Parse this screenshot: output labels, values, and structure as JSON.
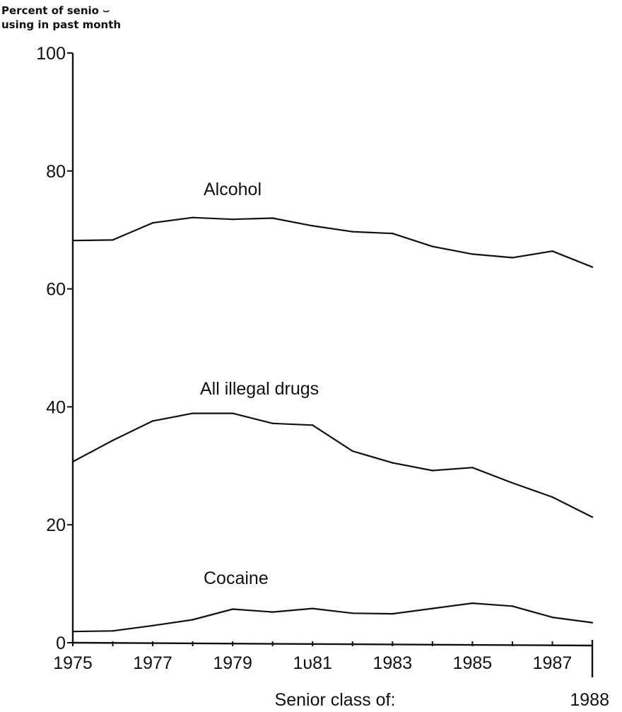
{
  "chart_data": {
    "type": "line",
    "ylabel_lines": [
      "Percent of senio ⌣",
      "using in past month"
    ],
    "xlabel": "Senior class of:",
    "x": [
      1975,
      1976,
      1977,
      1978,
      1979,
      1980,
      1981,
      1982,
      1983,
      1984,
      1985,
      1986,
      1987,
      1988
    ],
    "xlim": [
      1975,
      1988
    ],
    "ylim": [
      0,
      100
    ],
    "y_ticks": [
      0,
      20,
      40,
      60,
      80,
      100
    ],
    "y_tick_labels": [
      "0",
      "20",
      "40",
      "60",
      "80",
      "100"
    ],
    "x_tick_labels": [
      {
        "x": 1975,
        "label": "1975"
      },
      {
        "x": 1977,
        "label": "1977"
      },
      {
        "x": 1979,
        "label": "1979"
      },
      {
        "x": 1981,
        "label": "1υ81"
      },
      {
        "x": 1983,
        "label": "1983"
      },
      {
        "x": 1985,
        "label": "1985"
      },
      {
        "x": 1987,
        "label": "1987"
      }
    ],
    "end_year_label": "1988",
    "series": [
      {
        "name": "Alcohol",
        "values": [
          68.2,
          68.3,
          71.2,
          72.1,
          71.8,
          72.0,
          70.7,
          69.7,
          69.4,
          67.2,
          65.9,
          65.3,
          66.4,
          63.7
        ]
      },
      {
        "name": "All illegal drugs",
        "values": [
          30.7,
          34.3,
          37.6,
          38.9,
          38.9,
          37.2,
          36.9,
          32.5,
          30.5,
          29.2,
          29.7,
          27.1,
          24.7,
          21.3
        ]
      },
      {
        "name": "Cocaine",
        "values": [
          1.9,
          2.0,
          2.9,
          3.9,
          5.7,
          5.2,
          5.8,
          5.0,
          4.9,
          5.8,
          6.7,
          6.2,
          4.3,
          3.4
        ]
      }
    ],
    "grid": false,
    "legend": "inline labels"
  }
}
